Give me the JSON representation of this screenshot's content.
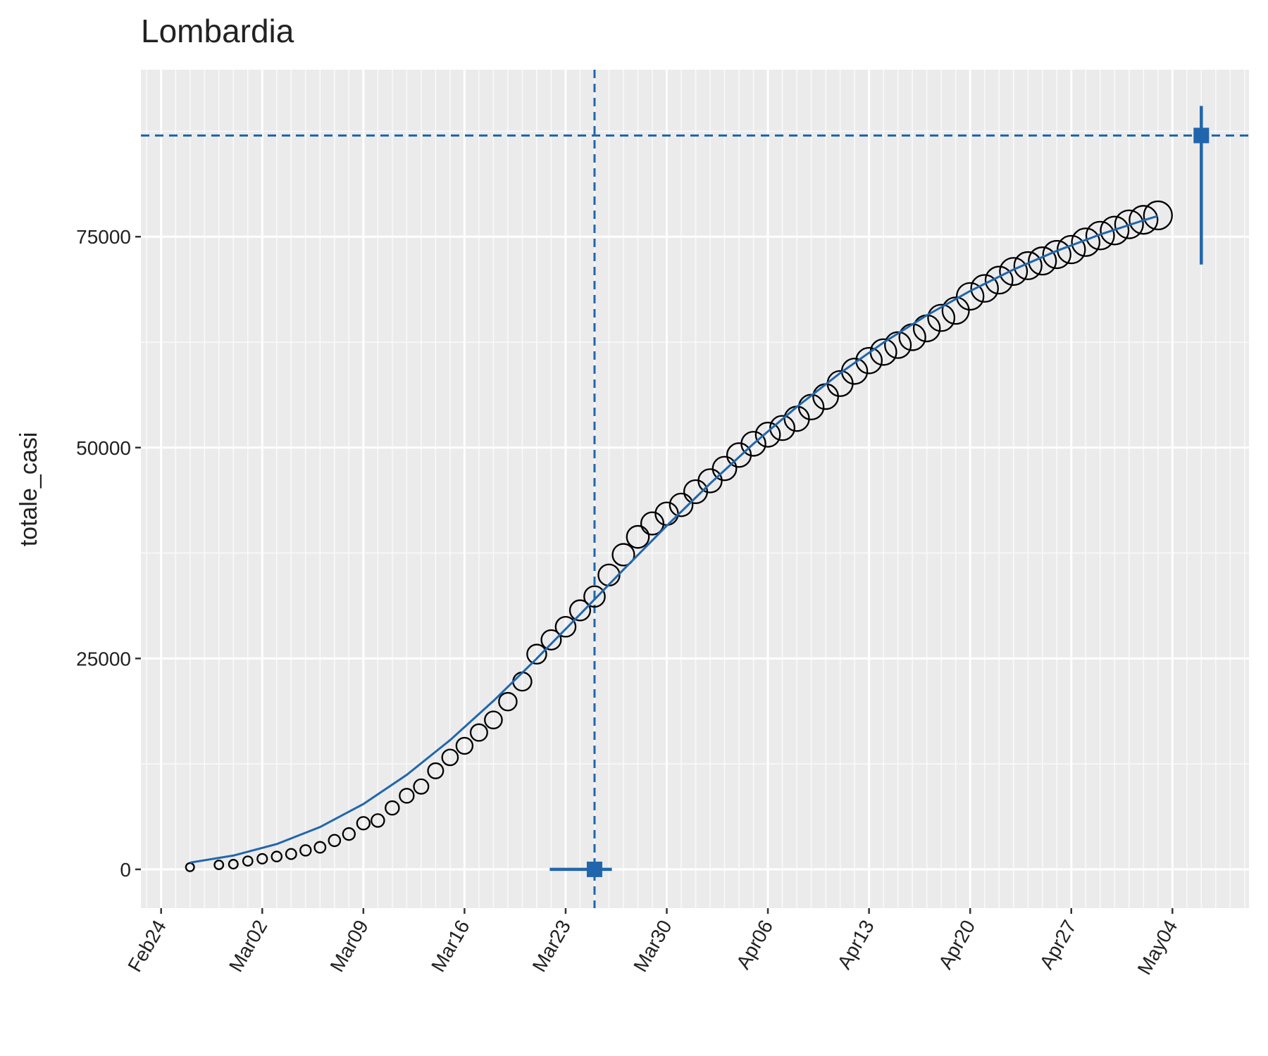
{
  "chart_data": {
    "type": "scatter",
    "title": "Lombardia",
    "y_label": "totale_casi",
    "color": "#2166ac",
    "x": [
      2,
      4,
      5,
      6,
      7,
      8,
      9,
      10,
      11,
      12,
      13,
      14,
      15,
      16,
      17,
      18,
      19,
      20,
      21,
      22,
      23,
      24,
      25,
      26,
      27,
      28,
      29,
      30,
      31,
      32,
      33,
      34,
      35,
      36,
      37,
      38,
      39,
      40,
      41,
      42,
      43,
      44,
      45,
      46,
      47,
      48,
      49,
      50,
      51,
      52,
      53,
      54,
      55,
      56,
      57,
      58,
      59,
      60,
      61,
      62,
      63,
      64,
      65,
      66,
      67,
      68,
      69
    ],
    "values": [
      258,
      531,
      615,
      984,
      1254,
      1520,
      1820,
      2251,
      2612,
      3420,
      4189,
      5469,
      5791,
      7280,
      8725,
      9820,
      11685,
      13272,
      14649,
      16220,
      17713,
      19884,
      22264,
      25515,
      27206,
      28761,
      30703,
      32346,
      34889,
      37298,
      39415,
      41007,
      42161,
      43208,
      44773,
      46065,
      47520,
      49118,
      50455,
      51534,
      52325,
      53414,
      54802,
      56048,
      57592,
      59052,
      60314,
      61326,
      62153,
      63094,
      64135,
      65381,
      66236,
      67931,
      68877,
      69852,
      70883,
      71569,
      72129,
      72889,
      73479,
      74348,
      75134,
      75732,
      76469,
      77002,
      77528
    ],
    "fit": {
      "x": [
        2,
        5,
        8,
        11,
        14,
        17,
        20,
        23,
        26,
        29,
        32,
        35,
        38,
        41,
        44,
        47,
        50,
        53,
        56,
        59,
        62,
        65,
        68,
        69
      ],
      "values": [
        799,
        1635,
        2998,
        5014,
        7745,
        11206,
        15321,
        19967,
        24995,
        30241,
        35531,
        40733,
        45736,
        50451,
        54827,
        58829,
        62449,
        65685,
        68565,
        71105,
        73324,
        75264,
        76943,
        77456
      ]
    },
    "flex_point": {
      "x": 30,
      "y": 0,
      "xmin": 26.9,
      "xmax": 31.2
    },
    "plateau": {
      "x": 72,
      "y": 87000,
      "ymin": 71700,
      "ymax": 90500
    },
    "xlim": [
      -1.4,
      75.3
    ],
    "ylim": [
      -4600,
      94800
    ],
    "xticks": [
      {
        "value": 0,
        "label": "Feb24"
      },
      {
        "value": 7,
        "label": "Mar02"
      },
      {
        "value": 14,
        "label": "Mar09"
      },
      {
        "value": 21,
        "label": "Mar16"
      },
      {
        "value": 28,
        "label": "Mar23"
      },
      {
        "value": 35,
        "label": "Mar30"
      },
      {
        "value": 42,
        "label": "Apr06"
      },
      {
        "value": 49,
        "label": "Apr13"
      },
      {
        "value": 56,
        "label": "Apr20"
      },
      {
        "value": 63,
        "label": "Apr27"
      },
      {
        "value": 70,
        "label": "May04"
      }
    ],
    "yticks": [
      0,
      25000,
      50000,
      75000
    ],
    "yminorticks": [
      12500,
      37500,
      62500,
      87500
    ],
    "grid": true
  }
}
